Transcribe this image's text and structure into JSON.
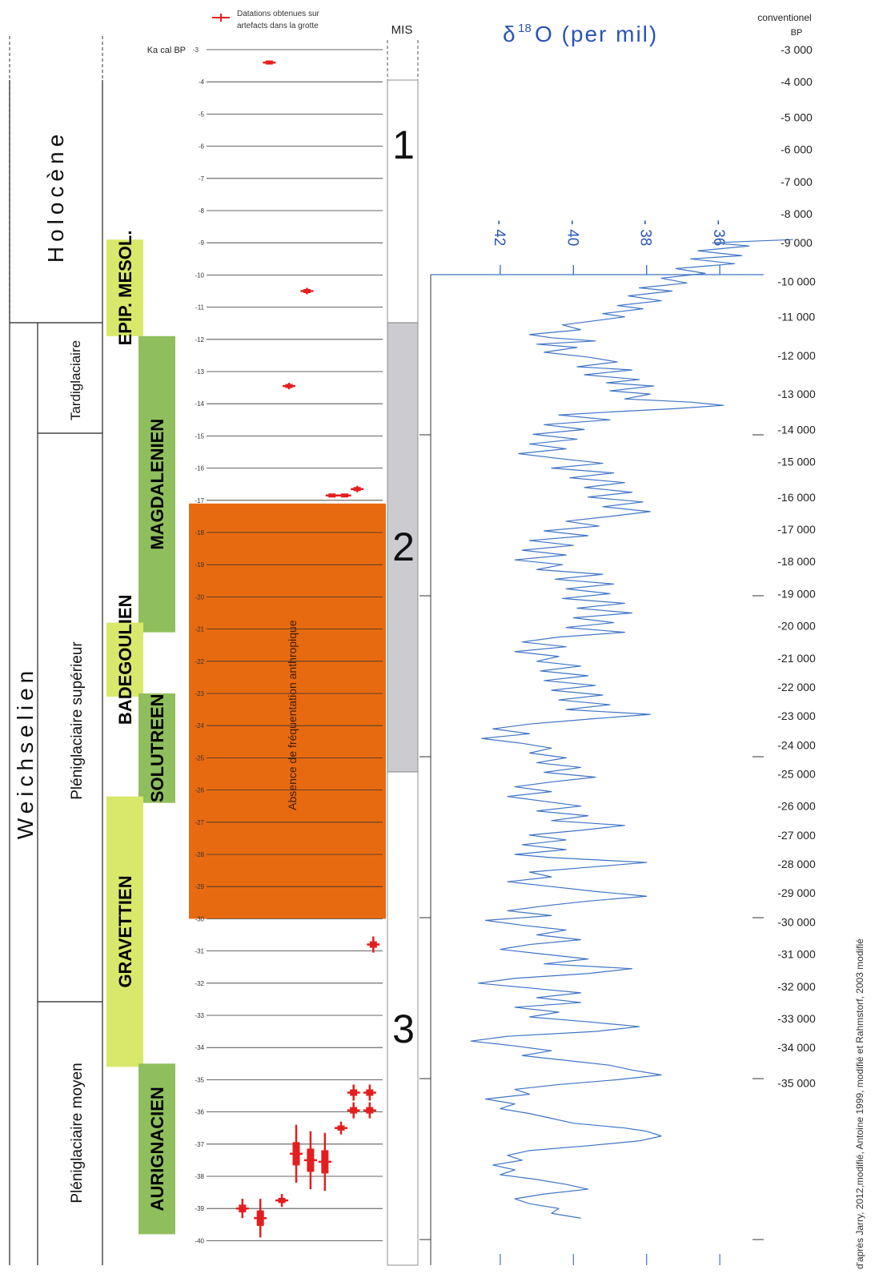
{
  "legend": {
    "text_line1": "Datations obtenues sur",
    "text_line2": "artefacts dans la grotte",
    "marker_color": "#e41e1e"
  },
  "left_columns": {
    "holocene": "Holocène",
    "weichselien": "Weichselien",
    "tardiglaciaire": "Tardiglaciaire",
    "pleniglaciaire_superieur": "Pléniglaciaire supérieur",
    "pleniglaciaire_moyen": "Pléniglaciaire moyen"
  },
  "ka_axis": {
    "title": "Ka cal BP",
    "ticks": [
      "-3",
      "-4",
      "-5",
      "-6",
      "-7",
      "-8",
      "-9",
      "-10",
      "-11",
      "-12",
      "-13",
      "-14",
      "-15",
      "-16",
      "-17",
      "-18",
      "-19",
      "-20",
      "-21",
      "-22",
      "-23",
      "-24",
      "-25",
      "-26",
      "-27",
      "-28",
      "-29",
      "-30",
      "-31",
      "-32",
      "-33",
      "-34",
      "-35",
      "-36",
      "-37",
      "-38",
      "-39",
      "-40"
    ]
  },
  "periods": [
    {
      "label": "EPIP. MESOL.",
      "color": "#d9e86a",
      "from": -8.9,
      "to": -11.9
    },
    {
      "label": "MAGDALENIEN",
      "color": "#8fbf5c",
      "from": -11.9,
      "to": -21.1
    },
    {
      "label": "BADEGOULIEN",
      "color": "#d9e86a",
      "from": -20.8,
      "to": -23.1
    },
    {
      "label": "SOLUTREEN",
      "color": "#8fbf5c",
      "from": -23.0,
      "to": -26.4
    },
    {
      "label": "GRAVETTIEN",
      "color": "#d9e86a",
      "from": -26.2,
      "to": -34.6
    },
    {
      "label": "AURIGNACIEN",
      "color": "#8fbf5c",
      "from": -34.5,
      "to": -39.8
    }
  ],
  "absence": {
    "label": "Absence de fréquentation anthropique",
    "color": "#e86a10",
    "from": -17.1,
    "to": -30.0
  },
  "mis": {
    "title": "MIS",
    "stages": [
      {
        "label": "1",
        "from": -3,
        "to": -11.9,
        "color": "#ffffff"
      },
      {
        "label": "2",
        "from": -11.9,
        "to": -25.1,
        "color": "#cbcbd0"
      },
      {
        "label": "3",
        "from": -25.1,
        "to": -40.5,
        "color": "#ffffff"
      }
    ]
  },
  "datations": [
    {
      "ka": -3.4,
      "err": 0.0,
      "pos": 0.35
    },
    {
      "ka": -10.5,
      "err": 0.1,
      "pos": 0.56
    },
    {
      "ka": -13.45,
      "err": 0.1,
      "pos": 0.46
    },
    {
      "ka": -16.85,
      "err": 0.05,
      "pos": 0.7
    },
    {
      "ka": -16.85,
      "err": 0.05,
      "pos": 0.77
    },
    {
      "ka": -16.65,
      "err": 0.1,
      "pos": 0.84
    },
    {
      "ka": -30.8,
      "err": 0.25,
      "pos": 0.93
    },
    {
      "ka": -35.4,
      "err": 0.25,
      "pos": 0.82
    },
    {
      "ka": -35.4,
      "err": 0.25,
      "pos": 0.91
    },
    {
      "ka": -35.95,
      "err": 0.25,
      "pos": 0.82
    },
    {
      "ka": -35.95,
      "err": 0.25,
      "pos": 0.91
    },
    {
      "ka": -36.5,
      "err": 0.2,
      "pos": 0.75
    },
    {
      "ka": -37.3,
      "err": 0.9,
      "pos": 0.5
    },
    {
      "ka": -37.5,
      "err": 0.9,
      "pos": 0.58
    },
    {
      "ka": -37.55,
      "err": 0.9,
      "pos": 0.66
    },
    {
      "ka": -38.75,
      "err": 0.2,
      "pos": 0.42
    },
    {
      "ka": -39.0,
      "err": 0.3,
      "pos": 0.2
    },
    {
      "ka": -39.3,
      "err": 0.6,
      "pos": 0.3
    }
  ],
  "chart_data": {
    "type": "line",
    "title": "δ18O (per mil)",
    "title_parts": {
      "delta": "δ",
      "sup": "18",
      "main": "O (per mil)"
    },
    "x_ticks": [
      "- 42",
      "- 40",
      "- 38",
      "- 36"
    ],
    "x_values": [
      -42,
      -40,
      -38,
      -36
    ],
    "xlim": [
      -43.9,
      -34.8
    ],
    "y_axis_title_line1": "conventionel",
    "y_axis_title_line2": "BP",
    "y_ticks": [
      "-3 000",
      "-4 000",
      "-5 000",
      "-6 000",
      "-7 000",
      "-8 000",
      "-9 000",
      "-10 000",
      "-11 000",
      "-12 000",
      "-13 000",
      "-14 000",
      "-15 000",
      "-16 000",
      "-17 000",
      "-18 000",
      "-19 000",
      "-20 000",
      "-21 000",
      "-22 000",
      "-23 000",
      "-24 000",
      "-25 000",
      "-26 000",
      "-27 000",
      "-28 000",
      "-29 000",
      "-30 000",
      "-31 000",
      "-32 000",
      "-33 000",
      "-34 000",
      "-35 000"
    ],
    "y_ticks_ka": [
      -3,
      -4,
      -5,
      -6,
      -7,
      -8,
      -9,
      -10,
      -11,
      -12,
      -13,
      -14,
      -15,
      -16,
      -17,
      -18,
      -19,
      -20,
      -21,
      -22,
      -23,
      -24,
      -25,
      -26,
      -27,
      -28,
      -29,
      -30,
      -31,
      -32,
      -33,
      -34,
      -35
    ],
    "y_ticks_calka": [
      -3,
      -4,
      -5.1,
      -6.1,
      -7.1,
      -8.1,
      -9.0,
      -10.2,
      -11.3,
      -12.5,
      -13.7,
      -14.8,
      -15.8,
      -16.9,
      -17.9,
      -18.9,
      -19.9,
      -20.9,
      -21.9,
      -22.8,
      -23.7,
      -24.6,
      -25.5,
      -26.5,
      -27.4,
      -28.3,
      -29.2,
      -30.1,
      -31.1,
      -32.1,
      -33.1,
      -34.0,
      -35.1
    ],
    "series": [
      {
        "color": "#3f74c6",
        "points": [
          [
            -34.0,
            -8.9
          ],
          [
            -36.2,
            -9.0
          ],
          [
            -35.2,
            -9.1
          ],
          [
            -36.6,
            -9.25
          ],
          [
            -35.4,
            -9.4
          ],
          [
            -36.8,
            -9.5
          ],
          [
            -35.6,
            -9.65
          ],
          [
            -37.2,
            -9.8
          ],
          [
            -36.4,
            -9.95
          ],
          [
            -37.6,
            -10.1
          ],
          [
            -36.9,
            -10.25
          ],
          [
            -38.2,
            -10.4
          ],
          [
            -37.3,
            -10.5
          ],
          [
            -38.5,
            -10.65
          ],
          [
            -37.6,
            -10.8
          ],
          [
            -38.8,
            -10.95
          ],
          [
            -38.1,
            -11.05
          ],
          [
            -39.2,
            -11.2
          ],
          [
            -38.6,
            -11.3
          ],
          [
            -39.6,
            -11.45
          ],
          [
            -40.3,
            -11.55
          ],
          [
            -39.8,
            -11.7
          ],
          [
            -41.2,
            -11.85
          ],
          [
            -40.6,
            -11.95
          ],
          [
            -39.4,
            -12.05
          ],
          [
            -41.0,
            -12.15
          ],
          [
            -39.9,
            -12.25
          ],
          [
            -40.8,
            -12.4
          ],
          [
            -39.6,
            -12.55
          ],
          [
            -38.8,
            -12.7
          ],
          [
            -39.9,
            -12.85
          ],
          [
            -38.4,
            -12.95
          ],
          [
            -39.7,
            -13.1
          ],
          [
            -38.2,
            -13.25
          ],
          [
            -39.1,
            -13.35
          ],
          [
            -37.8,
            -13.45
          ],
          [
            -39.0,
            -13.6
          ],
          [
            -37.9,
            -13.7
          ],
          [
            -38.6,
            -13.85
          ],
          [
            -36.8,
            -13.95
          ],
          [
            -35.9,
            -14.05
          ],
          [
            -37.2,
            -14.15
          ],
          [
            -38.9,
            -14.25
          ],
          [
            -40.4,
            -14.35
          ],
          [
            -39.0,
            -14.5
          ],
          [
            -40.8,
            -14.65
          ],
          [
            -39.7,
            -14.8
          ],
          [
            -41.1,
            -14.95
          ],
          [
            -39.9,
            -15.1
          ],
          [
            -41.2,
            -15.25
          ],
          [
            -40.2,
            -15.4
          ],
          [
            -41.5,
            -15.55
          ],
          [
            -40.4,
            -15.7
          ],
          [
            -39.2,
            -15.85
          ],
          [
            -40.6,
            -16.0
          ],
          [
            -38.9,
            -16.15
          ],
          [
            -40.1,
            -16.3
          ],
          [
            -38.6,
            -16.45
          ],
          [
            -39.7,
            -16.6
          ],
          [
            -38.4,
            -16.75
          ],
          [
            -39.6,
            -16.9
          ],
          [
            -38.1,
            -17.05
          ],
          [
            -39.2,
            -17.2
          ],
          [
            -37.9,
            -17.35
          ],
          [
            -39.0,
            -17.5
          ],
          [
            -40.2,
            -17.65
          ],
          [
            -39.3,
            -17.8
          ],
          [
            -40.8,
            -17.95
          ],
          [
            -39.6,
            -18.1
          ],
          [
            -41.2,
            -18.25
          ],
          [
            -40.0,
            -18.4
          ],
          [
            -41.4,
            -18.55
          ],
          [
            -40.2,
            -18.7
          ],
          [
            -41.6,
            -18.85
          ],
          [
            -40.3,
            -19.0
          ],
          [
            -41.0,
            -19.15
          ],
          [
            -39.2,
            -19.3
          ],
          [
            -40.5,
            -19.45
          ],
          [
            -38.9,
            -19.6
          ],
          [
            -40.2,
            -19.75
          ],
          [
            -39.0,
            -19.9
          ],
          [
            -40.3,
            -20.05
          ],
          [
            -38.6,
            -20.2
          ],
          [
            -39.9,
            -20.35
          ],
          [
            -38.4,
            -20.5
          ],
          [
            -40.0,
            -20.65
          ],
          [
            -38.9,
            -20.8
          ],
          [
            -40.2,
            -20.95
          ],
          [
            -38.6,
            -21.1
          ],
          [
            -40.4,
            -21.25
          ],
          [
            -41.4,
            -21.4
          ],
          [
            -40.2,
            -21.55
          ],
          [
            -41.6,
            -21.7
          ],
          [
            -40.4,
            -21.85
          ],
          [
            -41.0,
            -22.0
          ],
          [
            -39.8,
            -22.15
          ],
          [
            -40.9,
            -22.3
          ],
          [
            -39.6,
            -22.45
          ],
          [
            -40.8,
            -22.6
          ],
          [
            -39.4,
            -22.75
          ],
          [
            -40.6,
            -22.9
          ],
          [
            -39.2,
            -23.05
          ],
          [
            -40.4,
            -23.2
          ],
          [
            -39.0,
            -23.35
          ],
          [
            -40.2,
            -23.5
          ],
          [
            -37.9,
            -23.65
          ],
          [
            -39.6,
            -23.8
          ],
          [
            -41.2,
            -23.95
          ],
          [
            -42.2,
            -24.1
          ],
          [
            -41.2,
            -24.25
          ],
          [
            -42.5,
            -24.4
          ],
          [
            -41.4,
            -24.55
          ],
          [
            -40.6,
            -24.7
          ],
          [
            -41.2,
            -24.85
          ],
          [
            -40.2,
            -25.0
          ],
          [
            -41.0,
            -25.15
          ],
          [
            -39.8,
            -25.3
          ],
          [
            -40.8,
            -25.45
          ],
          [
            -39.4,
            -25.6
          ],
          [
            -40.6,
            -25.75
          ],
          [
            -41.6,
            -25.9
          ],
          [
            -40.6,
            -26.05
          ],
          [
            -41.8,
            -26.2
          ],
          [
            -40.8,
            -26.35
          ],
          [
            -39.8,
            -26.5
          ],
          [
            -41.0,
            -26.65
          ],
          [
            -39.6,
            -26.8
          ],
          [
            -40.6,
            -26.95
          ],
          [
            -38.6,
            -27.1
          ],
          [
            -39.8,
            -27.25
          ],
          [
            -41.2,
            -27.4
          ],
          [
            -40.2,
            -27.55
          ],
          [
            -41.4,
            -27.7
          ],
          [
            -40.2,
            -27.85
          ],
          [
            -41.6,
            -28.0
          ],
          [
            -40.6,
            -28.1
          ],
          [
            -38.0,
            -28.25
          ],
          [
            -39.6,
            -28.4
          ],
          [
            -41.2,
            -28.55
          ],
          [
            -40.6,
            -28.7
          ],
          [
            -41.8,
            -28.85
          ],
          [
            -40.6,
            -29.0
          ],
          [
            -39.4,
            -29.15
          ],
          [
            -38.0,
            -29.3
          ],
          [
            -39.6,
            -29.45
          ],
          [
            -40.8,
            -29.6
          ],
          [
            -41.8,
            -29.75
          ],
          [
            -40.6,
            -29.9
          ],
          [
            -42.4,
            -30.05
          ],
          [
            -41.4,
            -30.2
          ],
          [
            -40.2,
            -30.35
          ],
          [
            -41.0,
            -30.5
          ],
          [
            -39.8,
            -30.65
          ],
          [
            -41.2,
            -30.8
          ],
          [
            -42.0,
            -30.95
          ],
          [
            -40.8,
            -31.1
          ],
          [
            -39.6,
            -31.25
          ],
          [
            -40.8,
            -31.4
          ],
          [
            -38.4,
            -31.55
          ],
          [
            -39.6,
            -31.7
          ],
          [
            -41.6,
            -31.85
          ],
          [
            -42.6,
            -32.0
          ],
          [
            -41.2,
            -32.15
          ],
          [
            -39.8,
            -32.3
          ],
          [
            -41.0,
            -32.45
          ],
          [
            -39.8,
            -32.6
          ],
          [
            -41.6,
            -32.75
          ],
          [
            -40.4,
            -32.9
          ],
          [
            -41.2,
            -33.05
          ],
          [
            -39.6,
            -33.2
          ],
          [
            -38.2,
            -33.35
          ],
          [
            -39.4,
            -33.5
          ],
          [
            -41.8,
            -33.65
          ],
          [
            -42.8,
            -33.8
          ],
          [
            -41.6,
            -33.95
          ],
          [
            -40.6,
            -34.1
          ],
          [
            -41.4,
            -34.25
          ],
          [
            -40.2,
            -34.4
          ],
          [
            -39.0,
            -34.55
          ],
          [
            -38.4,
            -34.7
          ],
          [
            -37.6,
            -34.85
          ],
          [
            -38.8,
            -35.0
          ],
          [
            -40.4,
            -35.15
          ],
          [
            -41.6,
            -35.3
          ],
          [
            -41.2,
            -35.45
          ],
          [
            -42.4,
            -35.6
          ],
          [
            -41.6,
            -35.75
          ],
          [
            -42.0,
            -35.9
          ],
          [
            -41.2,
            -36.05
          ],
          [
            -40.6,
            -36.2
          ],
          [
            -40.0,
            -36.35
          ],
          [
            -38.6,
            -36.5
          ],
          [
            -38.0,
            -36.6
          ],
          [
            -37.6,
            -36.75
          ],
          [
            -38.2,
            -36.9
          ],
          [
            -39.6,
            -37.05
          ],
          [
            -41.2,
            -37.2
          ],
          [
            -41.8,
            -37.35
          ],
          [
            -41.4,
            -37.5
          ],
          [
            -42.2,
            -37.65
          ],
          [
            -41.6,
            -37.8
          ],
          [
            -42.0,
            -37.95
          ],
          [
            -41.0,
            -38.1
          ],
          [
            -40.2,
            -38.25
          ],
          [
            -39.6,
            -38.4
          ],
          [
            -40.8,
            -38.55
          ],
          [
            -41.6,
            -38.7
          ],
          [
            -41.2,
            -38.85
          ],
          [
            -40.4,
            -39.0
          ],
          [
            -40.6,
            -39.15
          ],
          [
            -39.8,
            -39.3
          ]
        ]
      }
    ]
  },
  "credit": "d'après Jarry, 2012,modifié, Antoine 1999, modifié et Rahmstorf, 2003 modifié"
}
